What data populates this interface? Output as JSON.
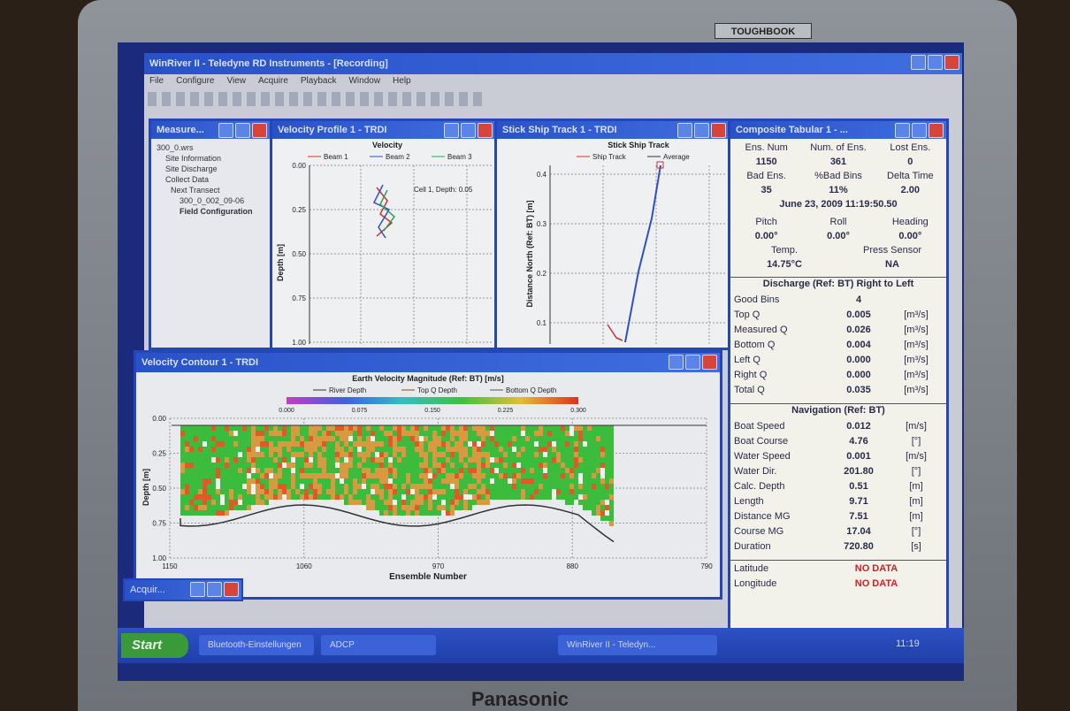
{
  "device": {
    "badge": "TOUGHBOOK",
    "brand": "Panasonic"
  },
  "main_window": {
    "title": "WinRiver II - Teledyne RD Instruments - [Recording]",
    "menu": [
      "File",
      "Configure",
      "View",
      "Acquire",
      "Playback",
      "Window",
      "Help"
    ]
  },
  "workspace": {
    "title": "Measure...",
    "tree": [
      "300_0.wrs",
      "Site Information",
      "Site Discharge",
      "Collect Data",
      "Next Transect",
      "300_0_002_09-06",
      "Field Configuration"
    ]
  },
  "velocity_profile": {
    "title": "Velocity Profile 1 - TRDI",
    "chart_title": "Velocity",
    "legend": [
      "Beam 1",
      "Beam 2",
      "Beam 3"
    ],
    "y_label": "Depth [m]",
    "yticks": [
      "0.00",
      "0.25",
      "0.50",
      "0.75",
      "1.00"
    ],
    "annotation": "Cell 1, Depth: 0.05"
  },
  "ship_track": {
    "title": "Stick Ship Track 1 - TRDI",
    "chart_title": "Stick Ship Track",
    "legend": [
      "Ship Track",
      "Average"
    ],
    "y_label": "Distance North (Ref: BT) [m]",
    "yticks": [
      "0.4",
      "0.3",
      "0.2",
      "0.1"
    ]
  },
  "contour": {
    "title": "Velocity Contour 1 - TRDI",
    "chart_title": "Earth Velocity Magnitude (Ref: BT) [m/s]",
    "legend": [
      "River Depth",
      "Top Q Depth",
      "Bottom Q Depth"
    ],
    "colorbar_ticks": [
      "0.000",
      "0.075",
      "0.150",
      "0.225",
      "0.300"
    ],
    "y_label": "Depth [m]",
    "yticks": [
      "0.00",
      "0.25",
      "0.50",
      "0.75",
      "1.00"
    ],
    "x_label": "Ensemble Number",
    "xticks": [
      "1150",
      "1060",
      "970",
      "880",
      "790"
    ]
  },
  "acquire_window": {
    "title": "Acquir..."
  },
  "tabular": {
    "title": "Composite Tabular 1 - ...",
    "top_grid": [
      [
        "Ens. Num",
        "Num. of Ens.",
        "Lost Ens."
      ],
      [
        "1150",
        "361",
        "0"
      ],
      [
        "Bad Ens.",
        "%Bad Bins",
        "Delta Time"
      ],
      [
        "35",
        "11%",
        "2.00"
      ]
    ],
    "timestamp": "June 23, 2009  11:19:50.50",
    "attitude_grid": [
      [
        "Pitch",
        "Roll",
        "Heading"
      ],
      [
        "0.00°",
        "0.00°",
        "0.00°"
      ]
    ],
    "sensor_grid": [
      [
        "Temp.",
        "Press Sensor"
      ],
      [
        "14.75°C",
        "NA"
      ]
    ],
    "discharge": {
      "heading": "Discharge (Ref: BT) Right to Left",
      "rows": [
        [
          "Good Bins",
          "4"
        ],
        [
          "Top Q",
          "0.005",
          "[m³/s]"
        ],
        [
          "Measured Q",
          "0.026",
          "[m³/s]"
        ],
        [
          "Bottom Q",
          "0.004",
          "[m³/s]"
        ],
        [
          "Left Q",
          "0.000",
          "[m³/s]"
        ],
        [
          "Right Q",
          "0.000",
          "[m³/s]"
        ],
        [
          "Total Q",
          "0.035",
          "[m³/s]"
        ]
      ]
    },
    "navigation": {
      "heading": "Navigation (Ref: BT)",
      "rows": [
        [
          "Boat Speed",
          "0.012",
          "[m/s]"
        ],
        [
          "Boat Course",
          "4.76",
          "[°]"
        ],
        [
          "Water Speed",
          "0.001",
          "[m/s]"
        ],
        [
          "Water Dir.",
          "201.80",
          "[°]"
        ],
        [
          "Calc. Depth",
          "0.51",
          "[m]"
        ],
        [
          "Length",
          "9.71",
          "[m]"
        ],
        [
          "Distance MG",
          "7.51",
          "[m]"
        ],
        [
          "Course MG",
          "17.04",
          "[°]"
        ],
        [
          "Duration",
          "720.80",
          "[s]"
        ]
      ]
    },
    "position": [
      [
        "Latitude",
        "NO DATA"
      ],
      [
        "Longitude",
        "NO DATA"
      ]
    ]
  },
  "taskbar": {
    "start": "Start",
    "tasks": [
      "Bluetooth-Einstellungen",
      "ADCP",
      "WinRiver II - Teledyn..."
    ],
    "clock": "11:19"
  }
}
